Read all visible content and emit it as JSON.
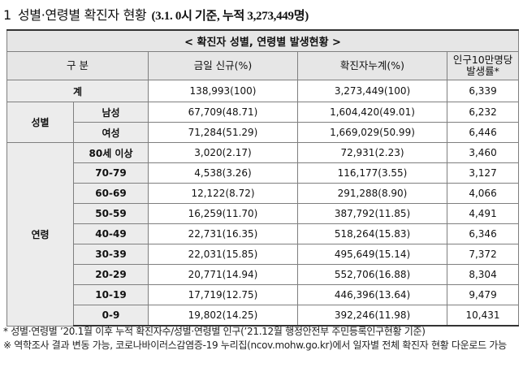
{
  "heading": {
    "number": "1",
    "title": "성별·연령별 확진자 현황",
    "subtitle": "(3.1. 0시 기준, 누적 3,273,449명)"
  },
  "table": {
    "caption": "< 확진자 성별, 연령별 발생현황 >",
    "headers": {
      "category": "구 분",
      "new": "금일 신규(%)",
      "cumulative": "확진자누계(%)",
      "rate_line1": "인구10만명당",
      "rate_line2": "발생률*"
    },
    "total": {
      "label": "계",
      "new": "138,993(100)",
      "cumulative": "3,273,449(100)",
      "rate": "6,339"
    },
    "sex": {
      "group": "성별",
      "rows": [
        {
          "label": "남성",
          "new": "67,709(48.71)",
          "cumulative": "1,604,420(49.01)",
          "rate": "6,232"
        },
        {
          "label": "여성",
          "new": "71,284(51.29)",
          "cumulative": "1,669,029(50.99)",
          "rate": "6,446"
        }
      ]
    },
    "age": {
      "group": "연령",
      "rows": [
        {
          "label": "80세 이상",
          "new": "3,020(2.17)",
          "cumulative": "72,931(2.23)",
          "rate": "3,460"
        },
        {
          "label": "70-79",
          "new": "4,538(3.26)",
          "cumulative": "116,177(3.55)",
          "rate": "3,127"
        },
        {
          "label": "60-69",
          "new": "12,122(8.72)",
          "cumulative": "291,288(8.90)",
          "rate": "4,066"
        },
        {
          "label": "50-59",
          "new": "16,259(11.70)",
          "cumulative": "387,792(11.85)",
          "rate": "4,491"
        },
        {
          "label": "40-49",
          "new": "22,731(16.35)",
          "cumulative": "518,264(15.83)",
          "rate": "6,346"
        },
        {
          "label": "30-39",
          "new": "22,031(15.85)",
          "cumulative": "495,649(15.14)",
          "rate": "7,372"
        },
        {
          "label": "20-29",
          "new": "20,771(14.94)",
          "cumulative": "552,706(16.88)",
          "rate": "8,304"
        },
        {
          "label": "10-19",
          "new": "17,719(12.75)",
          "cumulative": "446,396(13.64)",
          "rate": "9,479"
        },
        {
          "label": "0-9",
          "new": "19,802(14.25)",
          "cumulative": "392,246(11.98)",
          "rate": "10,431"
        }
      ]
    }
  },
  "footnotes": [
    "* 성별·연령별 ’20.1월 이후 누적 확진자수/성별·연령별 인구(’21.12월 행정안전부 주민등록인구현황 기준)",
    "※ 역학조사 결과 변동 가능, 코로나바이러스감염증-19 누리집(ncov.mohw.go.kr)에서 일자별 전체 확진자 현황 다운로드 가능"
  ]
}
